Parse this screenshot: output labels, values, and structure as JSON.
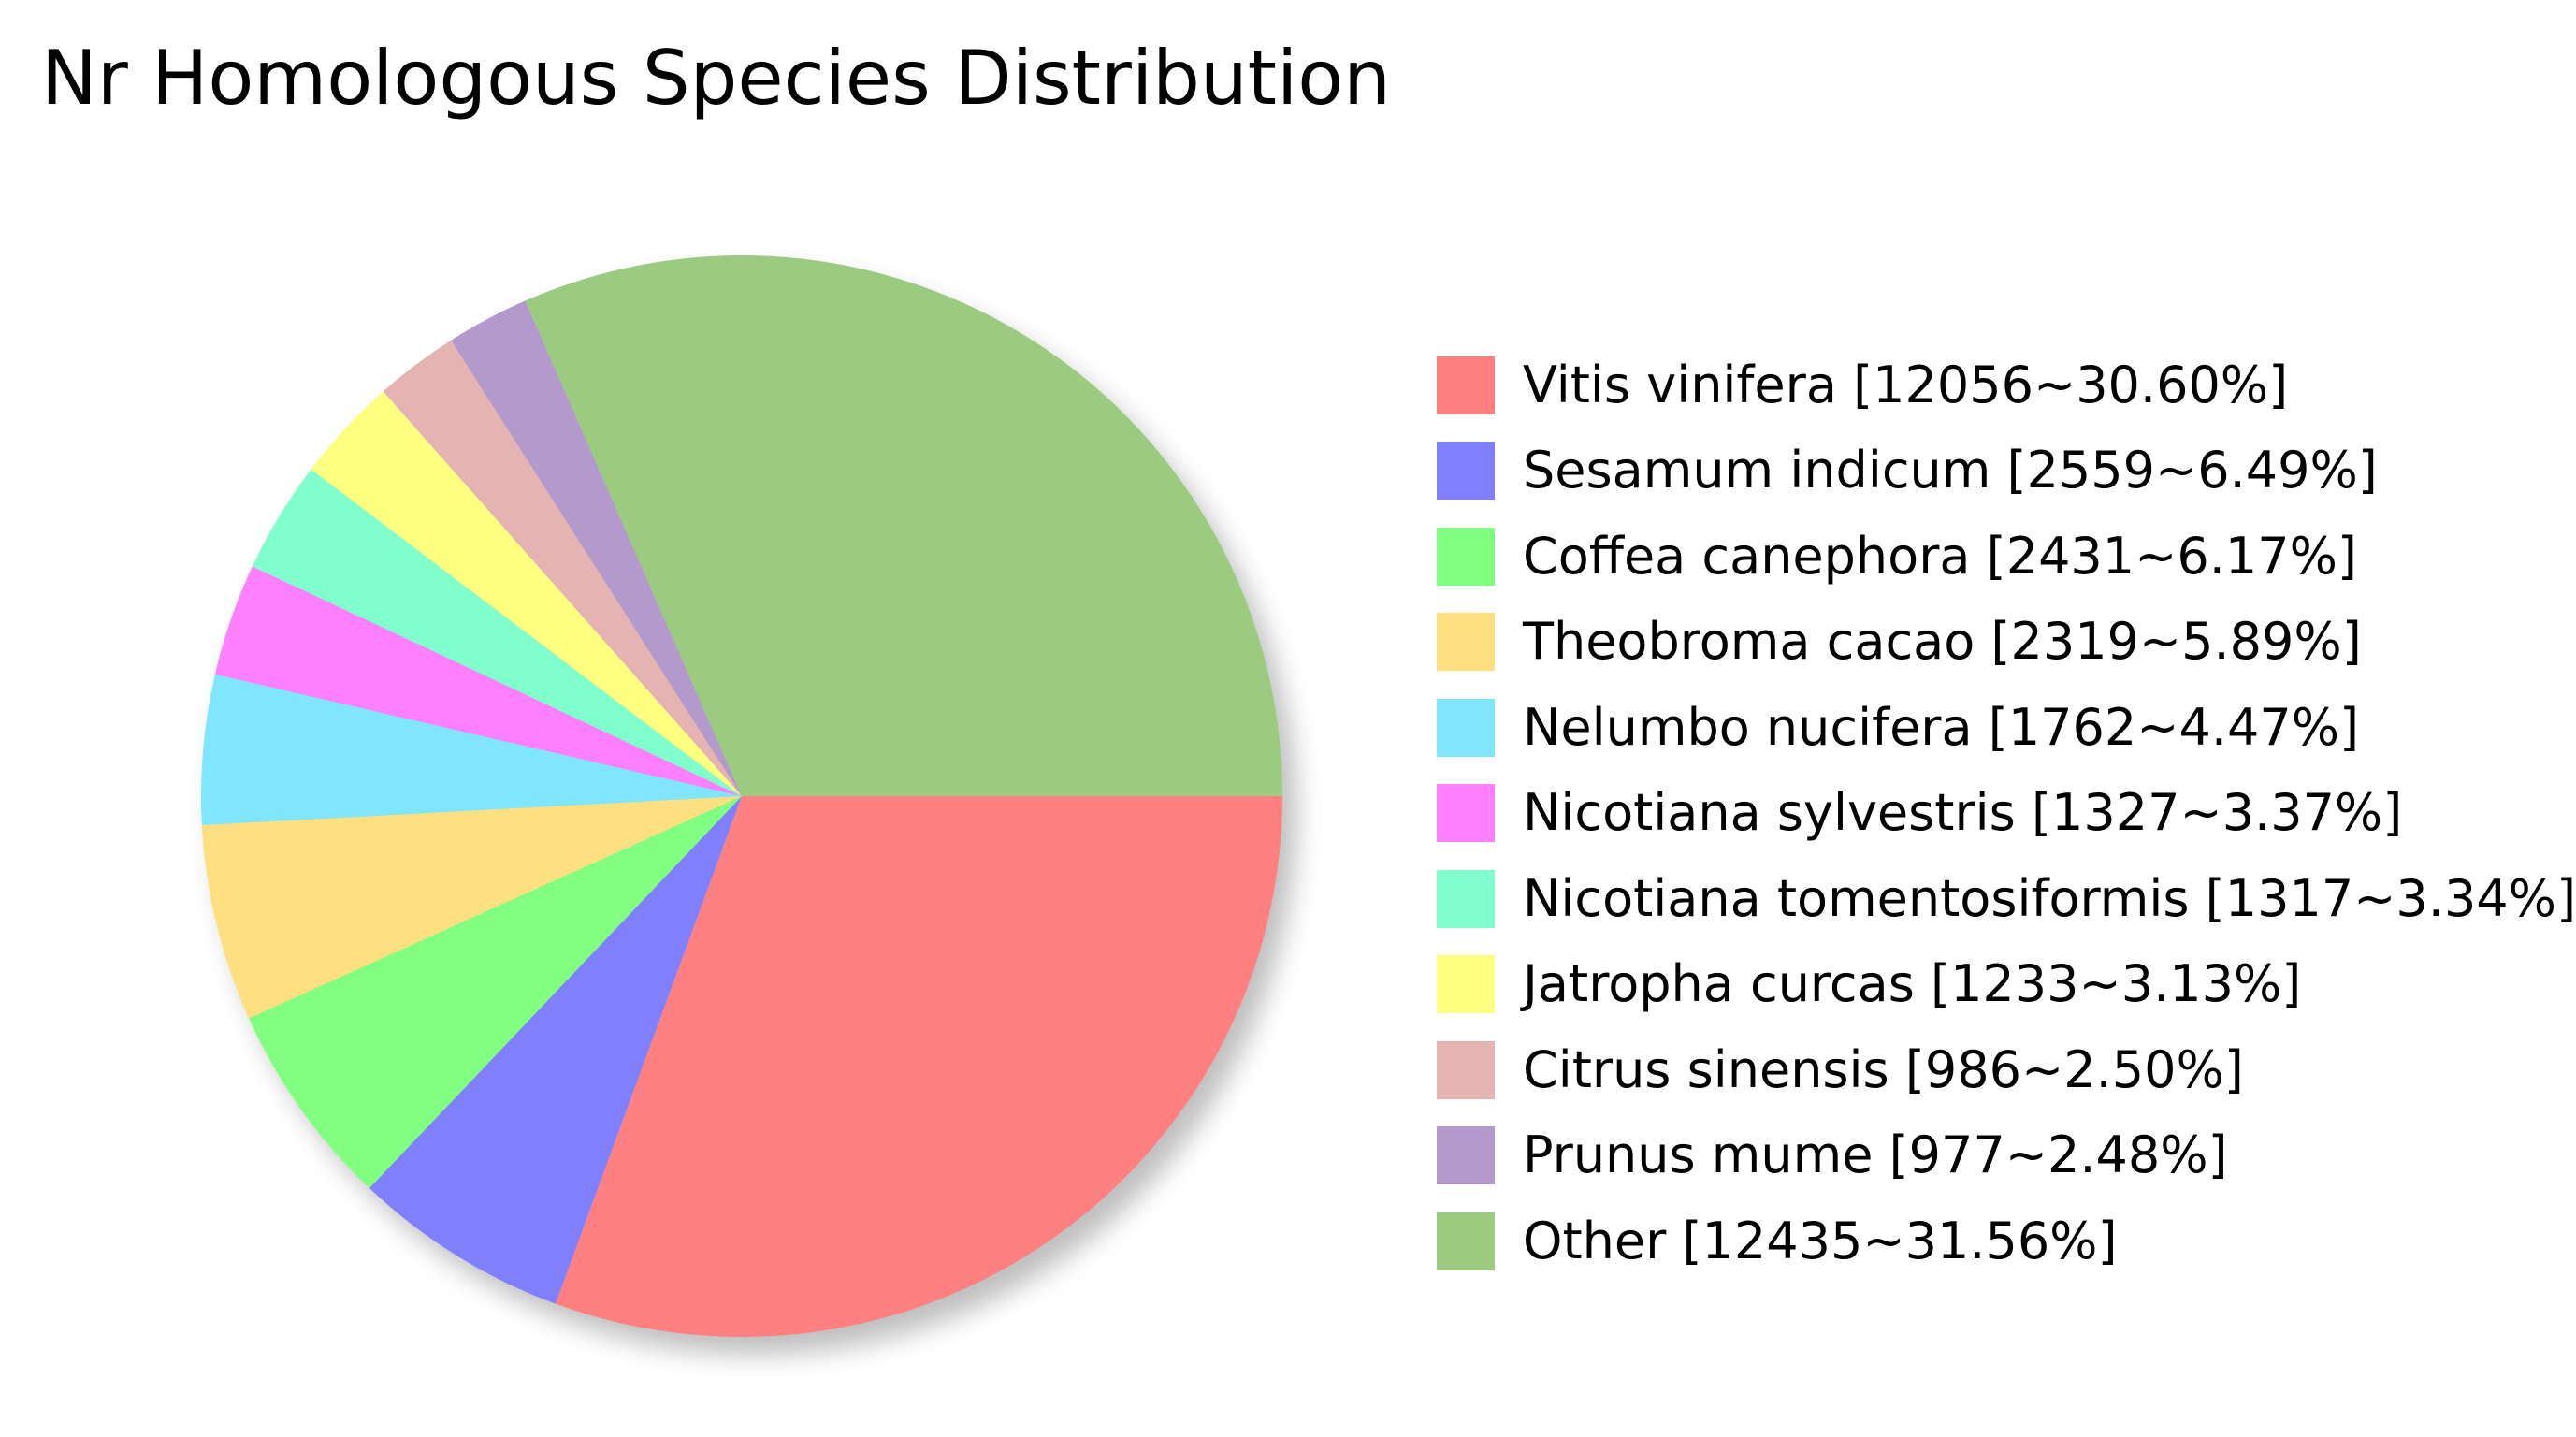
{
  "chart_data": {
    "type": "pie",
    "title": "Nr Homologous Species Distribution",
    "start_angle_deg": 0,
    "direction": "clockwise",
    "slices": [
      {
        "label": "Vitis vinifera [12056~30.60%]",
        "name": "Vitis vinifera",
        "value": 12056,
        "percent": 30.6,
        "color": "#ff8080"
      },
      {
        "label": "Sesamum indicum [2559~6.49%]",
        "name": "Sesamum indicum",
        "value": 2559,
        "percent": 6.49,
        "color": "#8080ff"
      },
      {
        "label": "Coffea canephora [2431~6.17%]",
        "name": "Coffea canephora",
        "value": 2431,
        "percent": 6.17,
        "color": "#80ff80"
      },
      {
        "label": "Theobroma cacao [2319~5.89%]",
        "name": "Theobroma cacao",
        "value": 2319,
        "percent": 5.89,
        "color": "#ffe080"
      },
      {
        "label": "Nelumbo nucifera [1762~4.47%]",
        "name": "Nelumbo nucifera",
        "value": 1762,
        "percent": 4.47,
        "color": "#80e6ff"
      },
      {
        "label": "Nicotiana sylvestris [1327~3.37%]",
        "name": "Nicotiana sylvestris",
        "value": 1327,
        "percent": 3.37,
        "color": "#ff80ff"
      },
      {
        "label": "Nicotiana tomentosiformis [1317~3.34%]",
        "name": "Nicotiana tomentosiformis",
        "value": 1317,
        "percent": 3.34,
        "color": "#80ffcc"
      },
      {
        "label": "Jatropha curcas [1233~3.13%]",
        "name": "Jatropha curcas",
        "value": 1233,
        "percent": 3.13,
        "color": "#ffff80"
      },
      {
        "label": "Citrus sinensis [986~2.50%]",
        "name": "Citrus sinensis",
        "value": 986,
        "percent": 2.5,
        "color": "#e6b3b3"
      },
      {
        "label": "Prunus mume [977~2.48%]",
        "name": "Prunus mume",
        "value": 977,
        "percent": 2.48,
        "color": "#b399cc"
      },
      {
        "label": "Other [12435~31.56%]",
        "name": "Other",
        "value": 12435,
        "percent": 31.56,
        "color": "#9cca80"
      }
    ],
    "legend_position": "right"
  }
}
